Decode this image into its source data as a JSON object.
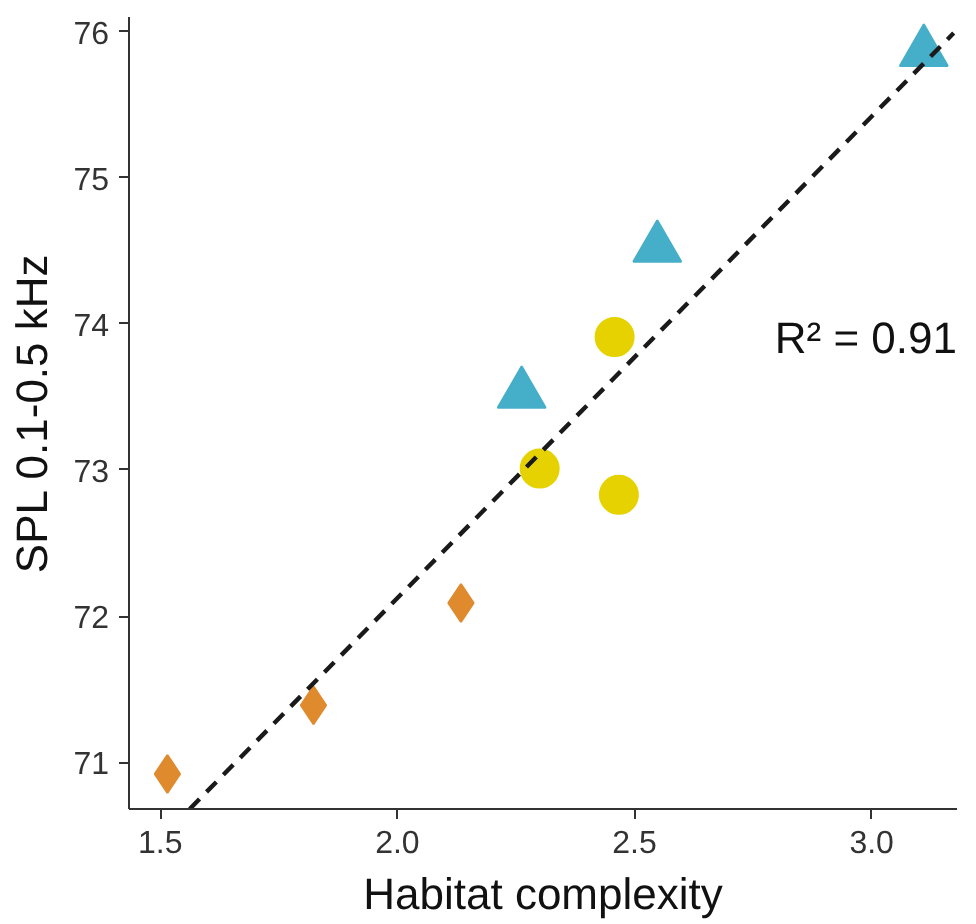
{
  "chart_data": {
    "type": "scatter",
    "xlabel": "Habitat complexity",
    "ylabel": "SPL 0.1-0.5 kHz",
    "xlim": [
      1.434,
      3.18
    ],
    "ylim": [
      70.68,
      76.1
    ],
    "xticks": [
      {
        "value": 1.5,
        "label": "1.5"
      },
      {
        "value": 2.0,
        "label": "2.0"
      },
      {
        "value": 2.5,
        "label": "2.5"
      },
      {
        "value": 3.0,
        "label": "3.0"
      }
    ],
    "yticks": [
      71,
      72,
      73,
      74,
      75,
      76
    ],
    "grid": false,
    "annotations": [
      "R² = 0.91"
    ],
    "series": [
      {
        "color": "#e08a2e",
        "marker": "diamond",
        "x": [
          1.515,
          1.823,
          2.134
        ],
        "values": [
          70.92,
          71.39,
          72.09
        ]
      },
      {
        "color": "#e6d200",
        "marker": "circle",
        "x": [
          2.3,
          2.458,
          2.467
        ],
        "values": [
          73.01,
          73.91,
          72.83
        ]
      },
      {
        "color": "#45aec8",
        "marker": "triangle",
        "x": [
          2.262,
          2.548,
          3.11
        ],
        "values": [
          73.52,
          74.52,
          75.86
        ]
      },
      {
        "type": "line",
        "color": "#1a1a1a",
        "line_style": "dashed",
        "marker": "none",
        "x": [
          1.562,
          3.173
        ],
        "values": [
          70.68,
          75.99
        ]
      }
    ]
  }
}
